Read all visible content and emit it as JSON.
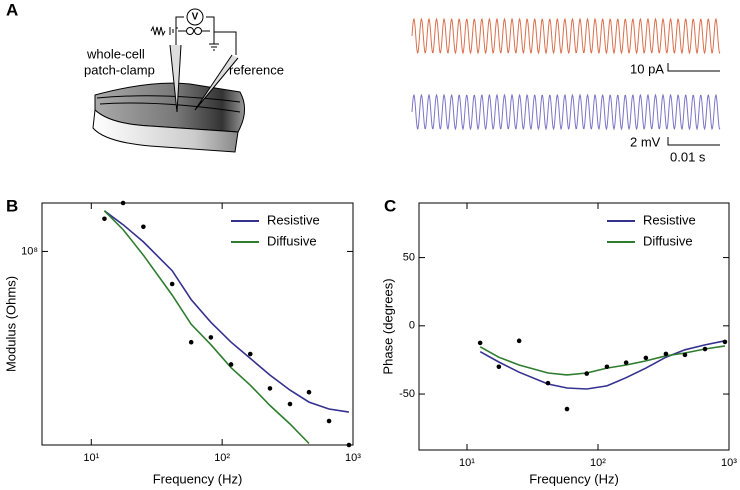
{
  "panels": [
    "A",
    "B",
    "C"
  ],
  "diagram": {
    "voltmeter": "V",
    "patch_label": [
      "whole-cell",
      "patch-clamp"
    ],
    "reference_label": "reference"
  },
  "traces": {
    "current_scale": "10 pA",
    "voltage_scale": "2 mV",
    "time_scale": "0.01 s",
    "current_color": "#d9704e",
    "voltage_color": "#7c74c8"
  },
  "chart_data": [
    {
      "type": "line",
      "xlabel": "Frequency (Hz)",
      "ylabel": "Modulus (Ohms)",
      "xlog": true,
      "ylog": true,
      "xlim": [
        4.2,
        1000
      ],
      "ylim": [
        12000000,
        170000000
      ],
      "xticks": [
        {
          "value": 10,
          "label": "10¹"
        },
        {
          "value": 100,
          "label": "10²"
        },
        {
          "value": 1000,
          "label": "10³"
        }
      ],
      "yticks": [
        {
          "value": 100000000,
          "label": "10⁸"
        }
      ],
      "legend": "upper right",
      "x": [
        12.6,
        17.5,
        25,
        41.5,
        58,
        82,
        117,
        164,
        232,
        330,
        461,
        656,
        931
      ],
      "points": {
        "color": "#000000",
        "values": [
          143000000,
          170000000,
          131000000,
          70000000,
          37000000,
          39000000,
          29000000,
          32500000,
          22300000,
          18800000,
          21400000,
          15600000,
          12000000
        ]
      },
      "series": [
        {
          "name": "Resistive",
          "color": "#35318f",
          "values": [
            156000000,
            134000000,
            111000000,
            81000000,
            59000000,
            46000000,
            37000000,
            31000000,
            25800000,
            21900000,
            19200000,
            17800000,
            17200000
          ]
        },
        {
          "name": "Diffusive",
          "color": "#2e7d2e",
          "values": [
            156000000,
            127000000,
            96000000,
            62000000,
            45000000,
            36000000,
            28000000,
            23100000,
            18500000,
            15100000,
            12200000,
            null,
            null
          ]
        }
      ]
    },
    {
      "type": "line",
      "xlabel": "Frequency (Hz)",
      "ylabel": "Phase (degrees)",
      "xlog": true,
      "ylog": false,
      "xlim": [
        4.3,
        1000
      ],
      "ylim": [
        -91,
        90
      ],
      "xticks": [
        {
          "value": 10,
          "label": "10¹"
        },
        {
          "value": 100,
          "label": "10²"
        },
        {
          "value": 1000,
          "label": "10³"
        }
      ],
      "yticks": [
        -50,
        0,
        50
      ],
      "legend": "upper right",
      "x": [
        12.6,
        17.5,
        25,
        41.5,
        58,
        82,
        117,
        164,
        232,
        330,
        461,
        656,
        931
      ],
      "points": {
        "color": "#000000",
        "values": [
          -12.5,
          -30,
          -11,
          -42,
          -61,
          -35,
          -30,
          -27,
          -23.5,
          -20.6,
          -21.3,
          -17,
          -11.8
        ]
      },
      "series": [
        {
          "name": "Resistive",
          "color": "#35318f",
          "values": [
            -19,
            -26.5,
            -34,
            -42.6,
            -45.6,
            -46.3,
            -44,
            -38,
            -31,
            -23,
            -17.6,
            -14,
            -11
          ]
        },
        {
          "name": "Diffusive",
          "color": "#2e7d2e",
          "values": [
            -15.4,
            -23,
            -28.7,
            -34.6,
            -36,
            -34.6,
            -31,
            -28.7,
            -25.7,
            -22,
            -19.9,
            -17,
            -14.7
          ]
        }
      ]
    }
  ]
}
